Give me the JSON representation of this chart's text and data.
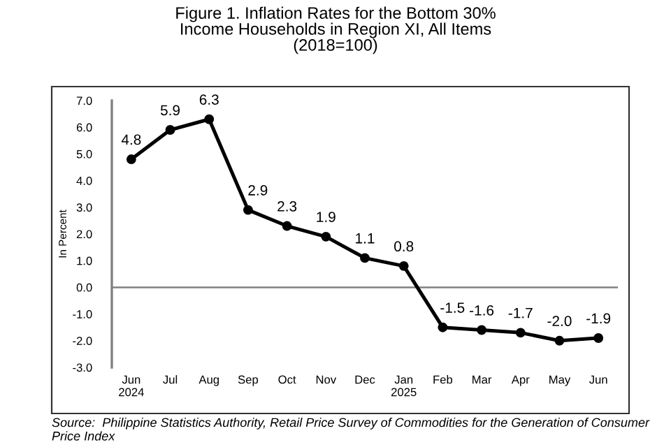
{
  "chart_data": {
    "type": "line",
    "title": "Figure 1. Inflation Rates for the Bottom 30%\nIncome Households in Region XI, All Items\n(2018=100)",
    "ylabel": "In Percent",
    "categories": [
      "Jun\n2024",
      "Jul",
      "Aug",
      "Sep",
      "Oct",
      "Nov",
      "Dec",
      "Jan\n2025",
      "Feb",
      "Mar",
      "Apr",
      "May",
      "Jun"
    ],
    "series": [
      {
        "color": "#000000",
        "values": [
          4.8,
          5.9,
          6.3,
          2.9,
          2.3,
          1.9,
          1.1,
          0.8,
          -1.5,
          -1.6,
          -1.7,
          -2.0,
          -1.9
        ]
      }
    ],
    "ylim": [
      -3.0,
      7.0
    ],
    "yticks": [
      {
        "value": -3,
        "label": "-3.0"
      },
      {
        "value": -2,
        "label": "-2.0"
      },
      {
        "value": -1,
        "label": "-1.0"
      },
      {
        "value": 0,
        "label": "0.0"
      },
      {
        "value": 1,
        "label": "1.0"
      },
      {
        "value": 2,
        "label": "2.0"
      },
      {
        "value": 3,
        "label": "3.0"
      },
      {
        "value": 4,
        "label": "4.0"
      },
      {
        "value": 5,
        "label": "5.0"
      },
      {
        "value": 6,
        "label": "6.0"
      },
      {
        "value": 7,
        "label": "7.0"
      }
    ],
    "ref_lines": [
      {
        "axis": "y",
        "value": 0,
        "color": "#808080"
      }
    ],
    "value_labels": [
      "4.8",
      "5.9",
      "6.3",
      "2.9",
      "2.3",
      "1.9",
      "1.1",
      "0.8",
      "-1.5",
      "-1.6",
      "-1.7",
      "-2.0",
      "-1.9"
    ],
    "marker": "circle",
    "line_style": "solid",
    "grid": false,
    "legend": false,
    "annotations": [
      "Source:  Philippine Statistics Authority, Retail Price Survey of Commodities for the Generation of Consumer Price Index"
    ]
  }
}
